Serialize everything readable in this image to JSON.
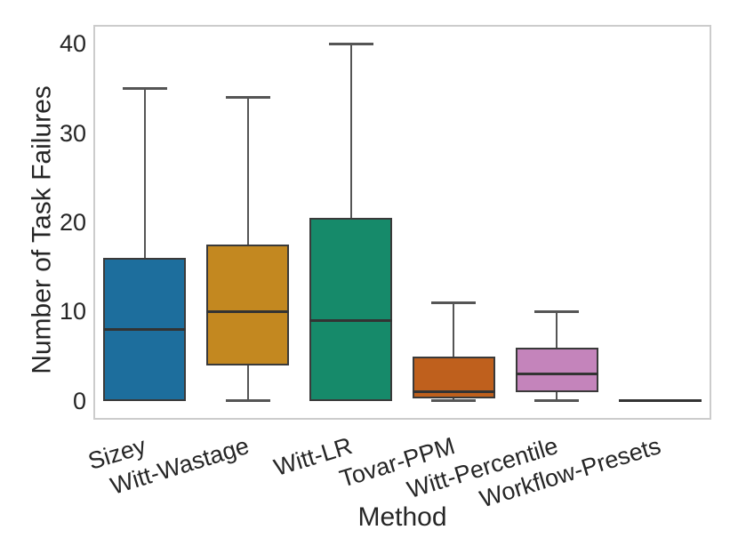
{
  "figure": {
    "background_color": "#ffffff",
    "text_color": "#262626",
    "grid_color": "#d9d9d9",
    "spine_color": "#cccccc",
    "whisker_color": "#555555",
    "box_edge_color": "#3a3a3a",
    "median_color": "#333333"
  },
  "chart_data": {
    "type": "box",
    "title": "",
    "xlabel": "Method",
    "ylabel": "Number of Task Failures",
    "categories": [
      "Sizey",
      "Witt-Wastage",
      "Witt-LR",
      "Tovar-PPM",
      "Witt-Percentile",
      "Workflow-Presets"
    ],
    "y_ticks": [
      0,
      10,
      20,
      30,
      40
    ],
    "ylim": [
      -2.1,
      42.1
    ],
    "grid": true,
    "legend": false,
    "series": [
      {
        "name": "Sizey",
        "color": "#1d6e9d",
        "whisker_low": 0,
        "q1": 0,
        "median": 8,
        "q3": 16,
        "whisker_high": 35
      },
      {
        "name": "Witt-Wastage",
        "color": "#c38820",
        "whisker_low": 0,
        "q1": 4,
        "median": 10,
        "q3": 17.5,
        "whisker_high": 34
      },
      {
        "name": "Witt-LR",
        "color": "#168a6a",
        "whisker_low": 0,
        "q1": 0,
        "median": 9,
        "q3": 20.5,
        "whisker_high": 40
      },
      {
        "name": "Tovar-PPM",
        "color": "#bf601d",
        "whisker_low": 0,
        "q1": 0.25,
        "median": 1,
        "q3": 5,
        "whisker_high": 11
      },
      {
        "name": "Witt-Percentile",
        "color": "#c484bb",
        "whisker_low": 0,
        "q1": 1,
        "median": 3,
        "q3": 6,
        "whisker_high": 10
      },
      {
        "name": "Workflow-Presets",
        "color": "#b5875f",
        "whisker_low": 0,
        "q1": 0,
        "median": 0,
        "q3": 0,
        "whisker_high": 0
      }
    ]
  }
}
